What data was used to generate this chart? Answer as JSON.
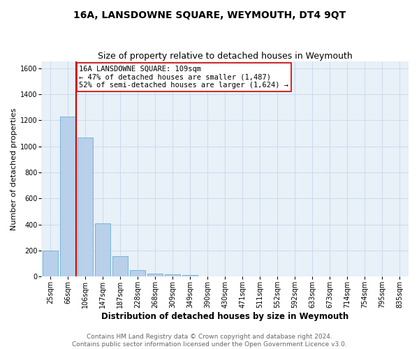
{
  "title": "16A, LANSDOWNE SQUARE, WEYMOUTH, DT4 9QT",
  "subtitle": "Size of property relative to detached houses in Weymouth",
  "xlabel": "Distribution of detached houses by size in Weymouth",
  "ylabel": "Number of detached properties",
  "categories": [
    "25sqm",
    "66sqm",
    "106sqm",
    "147sqm",
    "187sqm",
    "228sqm",
    "268sqm",
    "309sqm",
    "349sqm",
    "390sqm",
    "430sqm",
    "471sqm",
    "511sqm",
    "552sqm",
    "592sqm",
    "633sqm",
    "673sqm",
    "714sqm",
    "754sqm",
    "795sqm",
    "835sqm"
  ],
  "values": [
    200,
    1230,
    1070,
    410,
    160,
    50,
    25,
    18,
    12,
    0,
    0,
    0,
    0,
    0,
    0,
    0,
    0,
    0,
    0,
    0,
    0
  ],
  "bar_color": "#b8d0ea",
  "bar_edge_color": "#6aaed6",
  "vline_color": "#cc0000",
  "annotation_text": "16A LANSDOWNE SQUARE: 109sqm\n← 47% of detached houses are smaller (1,487)\n52% of semi-detached houses are larger (1,624) →",
  "annotation_box_color": "#ffffff",
  "annotation_box_edge_color": "#cc0000",
  "ylim": [
    0,
    1650
  ],
  "yticks": [
    0,
    200,
    400,
    600,
    800,
    1000,
    1200,
    1400,
    1600
  ],
  "grid_color": "#c8d8ea",
  "bg_color": "#e8f0f8",
  "footer_line1": "Contains HM Land Registry data © Crown copyright and database right 2024.",
  "footer_line2": "Contains public sector information licensed under the Open Government Licence v3.0.",
  "title_fontsize": 10,
  "subtitle_fontsize": 9,
  "xlabel_fontsize": 8.5,
  "ylabel_fontsize": 8,
  "tick_fontsize": 7,
  "footer_fontsize": 6.5,
  "annotation_fontsize": 7.5
}
